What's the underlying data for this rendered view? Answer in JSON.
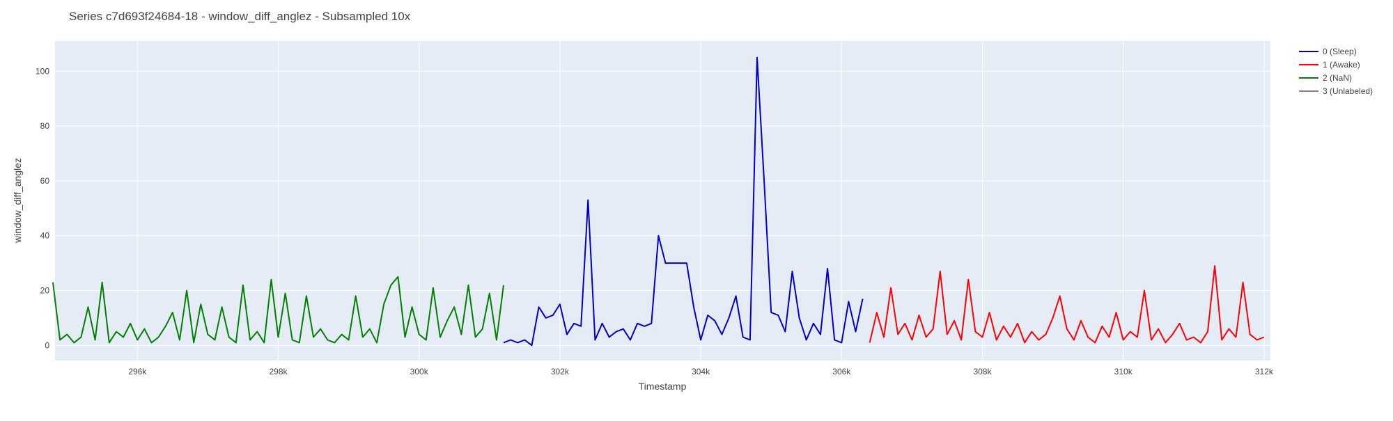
{
  "chart_data": {
    "type": "line",
    "title": "Series c7d693f24684-18 - window_diff_anglez - Subsampled 10x",
    "x_label": "Timestamp",
    "y_label": "window_diff_anglez",
    "xlim": [
      294830,
      312090
    ],
    "ylim": [
      -5.5,
      111
    ],
    "xticks": [
      {
        "value": 296000,
        "label": "296k"
      },
      {
        "value": 298000,
        "label": "298k"
      },
      {
        "value": 300000,
        "label": "300k"
      },
      {
        "value": 302000,
        "label": "302k"
      },
      {
        "value": 304000,
        "label": "304k"
      },
      {
        "value": 306000,
        "label": "306k"
      },
      {
        "value": 308000,
        "label": "308k"
      },
      {
        "value": 310000,
        "label": "310k"
      },
      {
        "value": 312000,
        "label": "312k"
      }
    ],
    "yticks": [
      0,
      20,
      40,
      60,
      80,
      100
    ],
    "grid": true,
    "legend": "right",
    "series": [
      {
        "name": "0 (Sleep)",
        "color": "#0000cd",
        "x": [
          301200,
          301300,
          301400,
          301500,
          301600,
          301700,
          301800,
          301900,
          302000,
          302100,
          302200,
          302300,
          302400,
          302500,
          302600,
          302700,
          302800,
          302900,
          303000,
          303100,
          303200,
          303300,
          303400,
          303500,
          303600,
          303700,
          303800,
          303900,
          304000,
          304100,
          304200,
          304300,
          304400,
          304500,
          304600,
          304700,
          304800,
          304900,
          305000,
          305100,
          305200,
          305300,
          305400,
          305500,
          305600,
          305700,
          305800,
          305900,
          306000,
          306100,
          306200,
          306300
        ],
        "values": [
          1,
          2,
          1,
          2,
          0,
          14,
          10,
          11,
          15,
          4,
          8,
          7,
          53,
          2,
          8,
          3,
          5,
          6,
          2,
          8,
          7,
          8,
          40,
          30,
          30,
          30,
          30,
          14,
          2,
          11,
          9,
          4,
          10,
          18,
          3,
          2,
          105,
          60,
          12,
          11,
          5,
          27,
          10,
          2,
          8,
          4,
          28,
          2,
          1,
          16,
          5,
          17
        ]
      },
      {
        "name": "1 (Awake)",
        "color": "#ff0000",
        "x": [
          306400,
          306500,
          306600,
          306700,
          306800,
          306900,
          307000,
          307100,
          307200,
          307300,
          307400,
          307500,
          307600,
          307700,
          307800,
          307900,
          308000,
          308100,
          308200,
          308300,
          308400,
          308500,
          308600,
          308700,
          308800,
          308900,
          309000,
          309100,
          309200,
          309300,
          309400,
          309500,
          309600,
          309700,
          309800,
          309900,
          310000,
          310100,
          310200,
          310300,
          310400,
          310500,
          310600,
          310700,
          310800,
          310900,
          311000,
          311100,
          311200,
          311300,
          311400,
          311500,
          311600,
          311700,
          311800,
          311900,
          312000
        ],
        "values": [
          1,
          12,
          3,
          21,
          4,
          8,
          2,
          11,
          3,
          6,
          27,
          4,
          9,
          2,
          24,
          5,
          3,
          12,
          2,
          7,
          3,
          8,
          1,
          5,
          2,
          4,
          10,
          18,
          6,
          2,
          9,
          3,
          1,
          7,
          3,
          12,
          2,
          5,
          3,
          20,
          2,
          6,
          1,
          4,
          8,
          2,
          3,
          1,
          5,
          29,
          2,
          6,
          3,
          23,
          4,
          2,
          3
        ]
      },
      {
        "name": "2 (NaN)",
        "color": "#008000",
        "x": [
          294800,
          294900,
          295000,
          295100,
          295200,
          295300,
          295400,
          295500,
          295600,
          295700,
          295800,
          295900,
          296000,
          296100,
          296200,
          296300,
          296400,
          296500,
          296600,
          296700,
          296800,
          296900,
          297000,
          297100,
          297200,
          297300,
          297400,
          297500,
          297600,
          297700,
          297800,
          297900,
          298000,
          298100,
          298200,
          298300,
          298400,
          298500,
          298600,
          298700,
          298800,
          298900,
          299000,
          299100,
          299200,
          299300,
          299400,
          299500,
          299600,
          299700,
          299800,
          299900,
          300000,
          300100,
          300200,
          300300,
          300400,
          300500,
          300600,
          300700,
          300800,
          300900,
          301000,
          301100,
          301200
        ],
        "values": [
          23,
          2,
          4,
          1,
          3,
          14,
          2,
          23,
          1,
          5,
          3,
          8,
          2,
          6,
          1,
          3,
          7,
          12,
          2,
          20,
          1,
          15,
          4,
          2,
          14,
          3,
          1,
          22,
          2,
          5,
          1,
          24,
          3,
          19,
          2,
          1,
          18,
          3,
          6,
          2,
          1,
          4,
          2,
          18,
          3,
          6,
          1,
          15,
          22,
          25,
          3,
          14,
          4,
          2,
          21,
          3,
          9,
          14,
          4,
          22,
          3,
          6,
          19,
          2,
          22
        ]
      },
      {
        "name": "3 (Unlabeled)",
        "color": "#808080",
        "x": [],
        "values": []
      }
    ]
  }
}
